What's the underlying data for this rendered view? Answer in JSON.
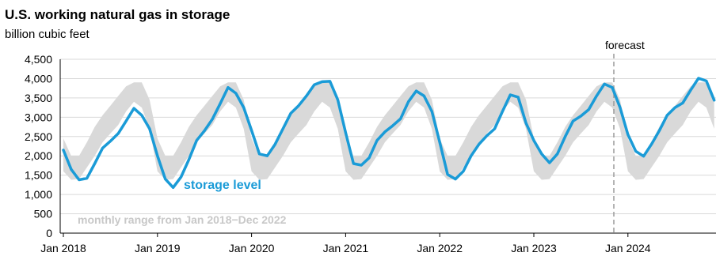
{
  "colors": {
    "series": "#1a9bd7",
    "range_band": "#d9d9d9",
    "range_label": "#c8c8c8",
    "grid": "#d9d9d9",
    "axis": "#000000",
    "forecast_line": "#9a9a9a"
  },
  "chart_data": {
    "type": "line",
    "title": "U.S. working natural gas in storage",
    "subtitle": "billion cubic feet",
    "xlabel": "",
    "ylabel": "",
    "x_tick_labels": [
      "Jan 2018",
      "Jan 2019",
      "Jan 2020",
      "Jan 2021",
      "Jan 2022",
      "Jan 2023",
      "Jan 2024"
    ],
    "y_tick_labels": [
      "0",
      "500",
      "1,000",
      "1,500",
      "2,000",
      "2,500",
      "3,000",
      "3,500",
      "4,000",
      "4,500"
    ],
    "ylim": [
      0,
      4500
    ],
    "grid": true,
    "forecast_label": "forecast",
    "forecast_start": "2023-11",
    "series": [
      {
        "name": "storage level",
        "x": [
          "2018-01",
          "2018-02",
          "2018-03",
          "2018-04",
          "2018-05",
          "2018-06",
          "2018-07",
          "2018-08",
          "2018-09",
          "2018-10",
          "2018-11",
          "2018-12",
          "2019-01",
          "2019-02",
          "2019-03",
          "2019-04",
          "2019-05",
          "2019-06",
          "2019-07",
          "2019-08",
          "2019-09",
          "2019-10",
          "2019-11",
          "2019-12",
          "2020-01",
          "2020-02",
          "2020-03",
          "2020-04",
          "2020-05",
          "2020-06",
          "2020-07",
          "2020-08",
          "2020-09",
          "2020-10",
          "2020-11",
          "2020-12",
          "2021-01",
          "2021-02",
          "2021-03",
          "2021-04",
          "2021-05",
          "2021-06",
          "2021-07",
          "2021-08",
          "2021-09",
          "2021-10",
          "2021-11",
          "2021-12",
          "2022-01",
          "2022-02",
          "2022-03",
          "2022-04",
          "2022-05",
          "2022-06",
          "2022-07",
          "2022-08",
          "2022-09",
          "2022-10",
          "2022-11",
          "2022-12",
          "2023-01",
          "2023-02",
          "2023-03",
          "2023-04",
          "2023-05",
          "2023-06",
          "2023-07",
          "2023-08",
          "2023-09",
          "2023-10",
          "2023-11",
          "2023-12",
          "2024-01",
          "2024-02",
          "2024-03",
          "2024-04",
          "2024-05",
          "2024-06",
          "2024-07",
          "2024-08",
          "2024-09",
          "2024-10",
          "2024-11",
          "2024-12"
        ],
        "values": [
          2150,
          1650,
          1380,
          1420,
          1800,
          2200,
          2380,
          2580,
          2900,
          3230,
          3050,
          2700,
          2000,
          1400,
          1180,
          1450,
          1900,
          2400,
          2650,
          2950,
          3350,
          3770,
          3620,
          3250,
          2660,
          2050,
          2000,
          2300,
          2700,
          3100,
          3300,
          3550,
          3840,
          3920,
          3930,
          3450,
          2600,
          1800,
          1760,
          1950,
          2400,
          2620,
          2780,
          2960,
          3400,
          3680,
          3550,
          3150,
          2350,
          1520,
          1400,
          1600,
          2000,
          2300,
          2520,
          2700,
          3150,
          3580,
          3520,
          2850,
          2400,
          2050,
          1820,
          2050,
          2500,
          2900,
          3030,
          3200,
          3550,
          3860,
          3770,
          3250,
          2550,
          2120,
          1990,
          2300,
          2650,
          3050,
          3250,
          3370,
          3700,
          4010,
          3940,
          3440
        ]
      }
    ],
    "range_band": {
      "name": "monthly range from Jan 2018−Dec 2022",
      "min": [
        1600,
        1380,
        1400,
        1700,
        2000,
        2350,
        2580,
        2800,
        3150,
        3400,
        3250,
        2700
      ],
      "max": [
        2450,
        2000,
        2000,
        2350,
        2750,
        3050,
        3300,
        3550,
        3800,
        3900,
        3900,
        3450
      ]
    }
  }
}
